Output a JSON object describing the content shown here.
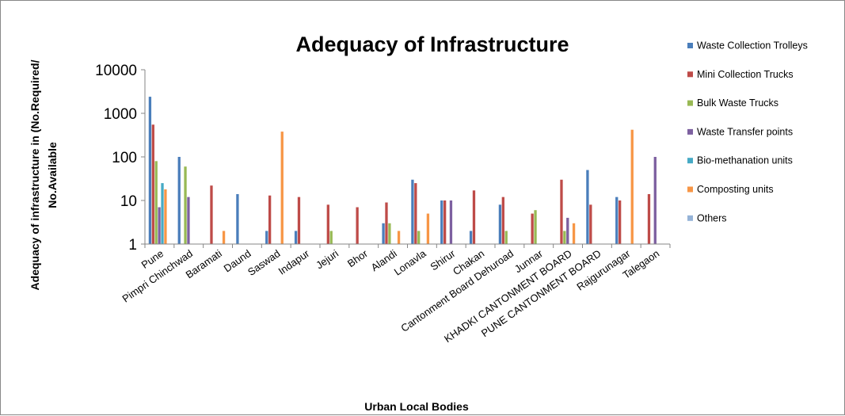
{
  "chart_data": {
    "type": "bar",
    "title": "Adequacy of Infrastructure",
    "xlabel": "Urban Local Bodies",
    "ylabel_lines": [
      "Adequacy of infrastructure in (No.Required/",
      "No.Available"
    ],
    "y_scale": "log",
    "ylim": [
      1,
      10000
    ],
    "y_ticks": [
      1,
      10,
      100,
      1000,
      10000
    ],
    "y_tick_labels": [
      "1",
      "10",
      "100",
      "1000",
      "10000"
    ],
    "grid": false,
    "legend_position": "right",
    "categories": [
      "Pune",
      "Pimpri Chinchwad",
      "Baramati",
      "Daund",
      "Saswad",
      "Indapur",
      "Jejuri",
      "Bhor",
      "Alandi",
      "Lonavla",
      "Shirur",
      "Chakan",
      "Cantonment Board Dehuroad",
      "Junnar",
      "KHADKI CANTONMENT BOARD",
      "PUNE CANTONMENT BOARD",
      "Rajgurunagar",
      "Talegaon"
    ],
    "series": [
      {
        "name": "Waste Collection Trolleys",
        "color": "#4a7ebb",
        "values": [
          2400,
          100,
          null,
          14,
          2,
          2,
          null,
          null,
          3,
          30,
          10,
          2,
          8,
          null,
          null,
          50,
          12,
          null
        ]
      },
      {
        "name": "Mini Collection Trucks",
        "color": "#be4b48",
        "values": [
          550,
          null,
          22,
          null,
          13,
          12,
          8,
          7,
          9,
          25,
          10,
          17,
          12,
          5,
          30,
          8,
          10,
          14
        ]
      },
      {
        "name": "Bulk Waste Trucks",
        "color": "#98b954",
        "values": [
          80,
          60,
          null,
          null,
          null,
          null,
          2,
          null,
          3,
          2,
          null,
          null,
          2,
          6,
          2,
          null,
          null,
          null
        ]
      },
      {
        "name": "Waste Transfer points",
        "color": "#7d60a0",
        "values": [
          7,
          12,
          null,
          null,
          null,
          null,
          null,
          null,
          null,
          null,
          10,
          null,
          null,
          null,
          4,
          null,
          null,
          100
        ]
      },
      {
        "name": "Bio-methanation units",
        "color": "#46aac5",
        "values": [
          25,
          null,
          null,
          null,
          null,
          null,
          null,
          null,
          null,
          null,
          null,
          null,
          null,
          null,
          null,
          null,
          null,
          null
        ]
      },
      {
        "name": "Composting units",
        "color": "#f79646",
        "values": [
          18,
          null,
          2,
          null,
          380,
          null,
          null,
          null,
          2,
          5,
          null,
          null,
          null,
          null,
          3,
          null,
          420,
          null
        ]
      },
      {
        "name": "Others",
        "color": "#95b3d7",
        "values": [
          null,
          null,
          null,
          null,
          null,
          null,
          null,
          null,
          null,
          null,
          null,
          null,
          null,
          null,
          null,
          null,
          null,
          null
        ]
      }
    ]
  }
}
